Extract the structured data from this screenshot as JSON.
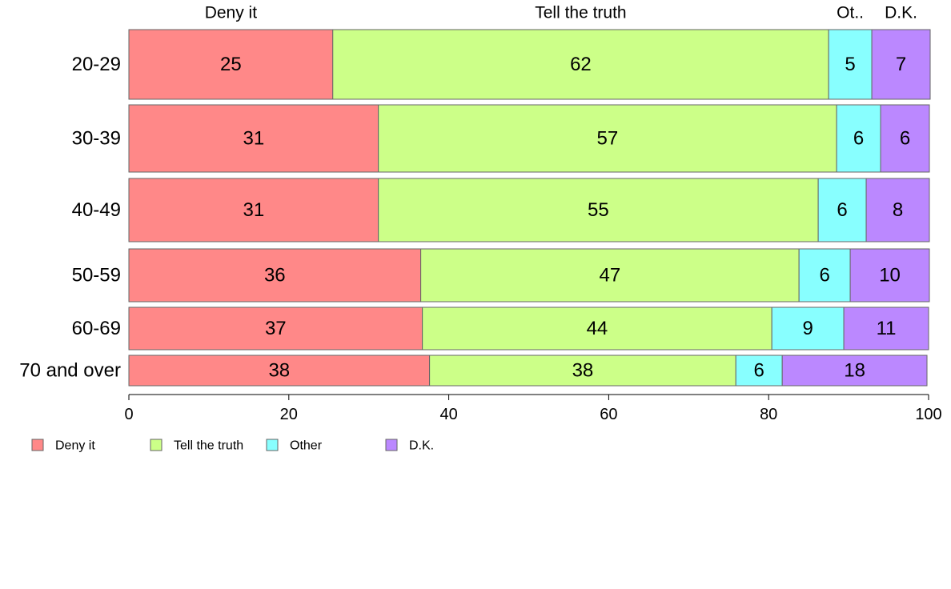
{
  "chart_data": {
    "type": "bar",
    "orientation": "horizontal",
    "stacked": true,
    "categories": [
      "20-29",
      "30-39",
      "40-49",
      "50-59",
      "60-69",
      "70 and over"
    ],
    "series": [
      {
        "name": "Deny it",
        "values": [
          25,
          31,
          31,
          36,
          37,
          38
        ],
        "color": "#ff8888"
      },
      {
        "name": "Tell the truth",
        "values": [
          62,
          57,
          55,
          47,
          44,
          38
        ],
        "color": "#ccff88"
      },
      {
        "name": "Other",
        "values": [
          5,
          6,
          6,
          6,
          9,
          6
        ],
        "color": "#88ffff"
      },
      {
        "name": "D.K.",
        "values": [
          7,
          6,
          8,
          10,
          11,
          18
        ],
        "color": "#bb88ff"
      }
    ],
    "plotted_widths": [
      [
        25.5,
        62.0,
        5.4,
        7.3
      ],
      [
        31.2,
        57.3,
        5.5,
        6.1
      ],
      [
        31.2,
        55.0,
        6.0,
        7.9
      ],
      [
        36.5,
        47.3,
        6.4,
        9.9
      ],
      [
        36.7,
        43.7,
        9.0,
        10.6
      ],
      [
        37.6,
        38.3,
        5.8,
        18.1
      ]
    ],
    "top_labels": [
      "Deny it",
      "Tell the truth",
      "Ot..",
      "D.K."
    ],
    "xlim": [
      0,
      100
    ],
    "xticks": [
      "0",
      "20",
      "40",
      "60",
      "80",
      "100"
    ],
    "xlabel": "",
    "ylabel": "",
    "grid": false,
    "legend": "bottom-left"
  }
}
